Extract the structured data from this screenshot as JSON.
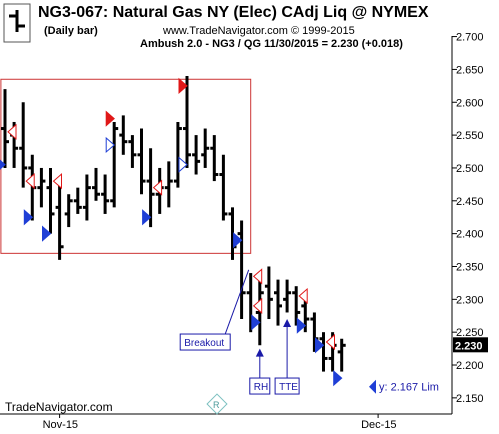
{
  "header": {
    "title": "NG3-067:  Natural Gas NY (Elec) CAdj Liq @ NYMEX",
    "period": "(Daily bar)",
    "copyright": "www.TradeNavigator.com © 1999-2015",
    "study_line": "Ambush 2.0 - NG3 / QG   11/30/2015 = 2.230 (+0.018)",
    "watermark": "TradeNavigator.com"
  },
  "colors": {
    "bar": "#000000",
    "rect": "#cc3333",
    "signal_blue": "#1f3fd6",
    "signal_red": "#e01818",
    "annotation": "#1a1aa8"
  },
  "chart_data": {
    "type": "ohlc",
    "yrange": [
      2.13,
      2.71
    ],
    "yticks": [
      2.15,
      2.2,
      2.25,
      2.3,
      2.35,
      2.4,
      2.45,
      2.5,
      2.55,
      2.6,
      2.65,
      2.7
    ],
    "ytick_labels": [
      "2.150",
      "2.200",
      "2.250",
      "2.300",
      "2.350",
      "2.400",
      "2.450",
      "2.500",
      "2.550",
      "2.600",
      "2.650",
      "2.700"
    ],
    "last_price_label": "2.230",
    "x_labels": [
      {
        "label": "Nov-15",
        "bar": 6
      },
      {
        "label": "Dec-15",
        "bar": 41
      }
    ],
    "bars": [
      {
        "o": 2.56,
        "h": 2.62,
        "l": 2.5,
        "c": 2.54
      },
      {
        "o": 2.55,
        "h": 2.57,
        "l": 2.5,
        "c": 2.53
      },
      {
        "o": 2.53,
        "h": 2.6,
        "l": 2.47,
        "c": 2.5
      },
      {
        "o": 2.5,
        "h": 2.52,
        "l": 2.42,
        "c": 2.47
      },
      {
        "o": 2.47,
        "h": 2.5,
        "l": 2.44,
        "c": 2.48
      },
      {
        "o": 2.47,
        "h": 2.5,
        "l": 2.4,
        "c": 2.43
      },
      {
        "o": 2.44,
        "h": 2.48,
        "l": 2.36,
        "c": 2.38
      },
      {
        "o": 2.43,
        "h": 2.46,
        "l": 2.41,
        "c": 2.45
      },
      {
        "o": 2.45,
        "h": 2.47,
        "l": 2.43,
        "c": 2.44
      },
      {
        "o": 2.44,
        "h": 2.49,
        "l": 2.42,
        "c": 2.47
      },
      {
        "o": 2.47,
        "h": 2.5,
        "l": 2.45,
        "c": 2.46
      },
      {
        "o": 2.46,
        "h": 2.49,
        "l": 2.43,
        "c": 2.45
      },
      {
        "o": 2.45,
        "h": 2.57,
        "l": 2.44,
        "c": 2.56
      },
      {
        "o": 2.55,
        "h": 2.58,
        "l": 2.52,
        "c": 2.54
      },
      {
        "o": 2.54,
        "h": 2.55,
        "l": 2.5,
        "c": 2.52
      },
      {
        "o": 2.52,
        "h": 2.56,
        "l": 2.46,
        "c": 2.48
      },
      {
        "o": 2.48,
        "h": 2.53,
        "l": 2.41,
        "c": 2.46
      },
      {
        "o": 2.46,
        "h": 2.5,
        "l": 2.43,
        "c": 2.47
      },
      {
        "o": 2.47,
        "h": 2.51,
        "l": 2.44,
        "c": 2.48
      },
      {
        "o": 2.48,
        "h": 2.57,
        "l": 2.47,
        "c": 2.56
      },
      {
        "o": 2.56,
        "h": 2.64,
        "l": 2.5,
        "c": 2.52
      },
      {
        "o": 2.52,
        "h": 2.55,
        "l": 2.49,
        "c": 2.51
      },
      {
        "o": 2.52,
        "h": 2.56,
        "l": 2.5,
        "c": 2.53
      },
      {
        "o": 2.53,
        "h": 2.55,
        "l": 2.48,
        "c": 2.49
      },
      {
        "o": 2.49,
        "h": 2.52,
        "l": 2.42,
        "c": 2.43
      },
      {
        "o": 2.43,
        "h": 2.44,
        "l": 2.36,
        "c": 2.38
      },
      {
        "o": 2.4,
        "h": 2.42,
        "l": 2.27,
        "c": 2.31
      },
      {
        "o": 2.31,
        "h": 2.34,
        "l": 2.25,
        "c": 2.27
      },
      {
        "o": 2.28,
        "h": 2.33,
        "l": 2.23,
        "c": 2.31
      },
      {
        "o": 2.32,
        "h": 2.35,
        "l": 2.27,
        "c": 2.3
      },
      {
        "o": 2.31,
        "h": 2.33,
        "l": 2.26,
        "c": 2.29
      },
      {
        "o": 2.3,
        "h": 2.33,
        "l": 2.28,
        "c": 2.31
      },
      {
        "o": 2.31,
        "h": 2.32,
        "l": 2.26,
        "c": 2.28
      },
      {
        "o": 2.29,
        "h": 2.3,
        "l": 2.25,
        "c": 2.27
      },
      {
        "o": 2.27,
        "h": 2.28,
        "l": 2.22,
        "c": 2.24
      },
      {
        "o": 2.24,
        "h": 2.25,
        "l": 2.19,
        "c": 2.21
      },
      {
        "o": 2.21,
        "h": 2.25,
        "l": 2.19,
        "c": 2.23
      },
      {
        "o": 2.22,
        "h": 2.24,
        "l": 2.19,
        "c": 2.23
      }
    ],
    "signals": [
      {
        "bar": 0,
        "price": 2.555,
        "dir": "left",
        "color": "signal_red",
        "filled": false
      },
      {
        "bar": 0,
        "price": 2.505,
        "dir": "right",
        "color": "signal_blue",
        "filled": true
      },
      {
        "bar": 2,
        "price": 2.48,
        "dir": "left",
        "color": "signal_red",
        "filled": false
      },
      {
        "bar": 3,
        "price": 2.425,
        "dir": "right",
        "color": "signal_blue",
        "filled": true
      },
      {
        "bar": 5,
        "price": 2.48,
        "dir": "left",
        "color": "signal_red",
        "filled": false
      },
      {
        "bar": 5,
        "price": 2.4,
        "dir": "right",
        "color": "signal_blue",
        "filled": true
      },
      {
        "bar": 12,
        "price": 2.575,
        "dir": "right",
        "color": "signal_red",
        "filled": true
      },
      {
        "bar": 12,
        "price": 2.535,
        "dir": "right",
        "color": "signal_blue",
        "filled": false
      },
      {
        "bar": 16,
        "price": 2.47,
        "dir": "left",
        "color": "signal_red",
        "filled": false
      },
      {
        "bar": 16,
        "price": 2.425,
        "dir": "right",
        "color": "signal_blue",
        "filled": true
      },
      {
        "bar": 20,
        "price": 2.625,
        "dir": "right",
        "color": "signal_red",
        "filled": true
      },
      {
        "bar": 20,
        "price": 2.505,
        "dir": "right",
        "color": "signal_blue",
        "filled": false
      },
      {
        "bar": 26,
        "price": 2.39,
        "dir": "right",
        "color": "signal_blue",
        "filled": true
      },
      {
        "bar": 27,
        "price": 2.335,
        "dir": "left",
        "color": "signal_red",
        "filled": false
      },
      {
        "bar": 27,
        "price": 2.29,
        "dir": "left",
        "color": "signal_red",
        "filled": false
      },
      {
        "bar": 28,
        "price": 2.265,
        "dir": "right",
        "color": "signal_blue",
        "filled": true
      },
      {
        "bar": 32,
        "price": 2.305,
        "dir": "left",
        "color": "signal_red",
        "filled": false
      },
      {
        "bar": 33,
        "price": 2.26,
        "dir": "right",
        "color": "signal_blue",
        "filled": true
      },
      {
        "bar": 35,
        "price": 2.235,
        "dir": "left",
        "color": "signal_red",
        "filled": false
      },
      {
        "bar": 35,
        "price": 2.23,
        "dir": "right",
        "color": "signal_blue",
        "filled": true
      },
      {
        "bar": 37,
        "price": 2.18,
        "dir": "right",
        "color": "signal_blue",
        "filled": true
      }
    ],
    "box": {
      "bar_start": -1,
      "bar_end": 27,
      "high": 2.635,
      "low": 2.37
    },
    "annotations": {
      "breakout": {
        "text": "Breakout",
        "bar": 22,
        "price": 2.235,
        "target_bar": 27,
        "target_price": 2.345
      },
      "rh": {
        "text": "RH",
        "bar": 28,
        "price": 2.168,
        "target_bar": 28,
        "target_price": 2.225
      },
      "tte": {
        "text": "TTE",
        "bar": 31,
        "price": 2.168,
        "target_bar": 31,
        "target_price": 2.27
      },
      "projection": {
        "text": "y: 2.167 Lim",
        "bar": 40,
        "price": 2.167
      }
    }
  }
}
